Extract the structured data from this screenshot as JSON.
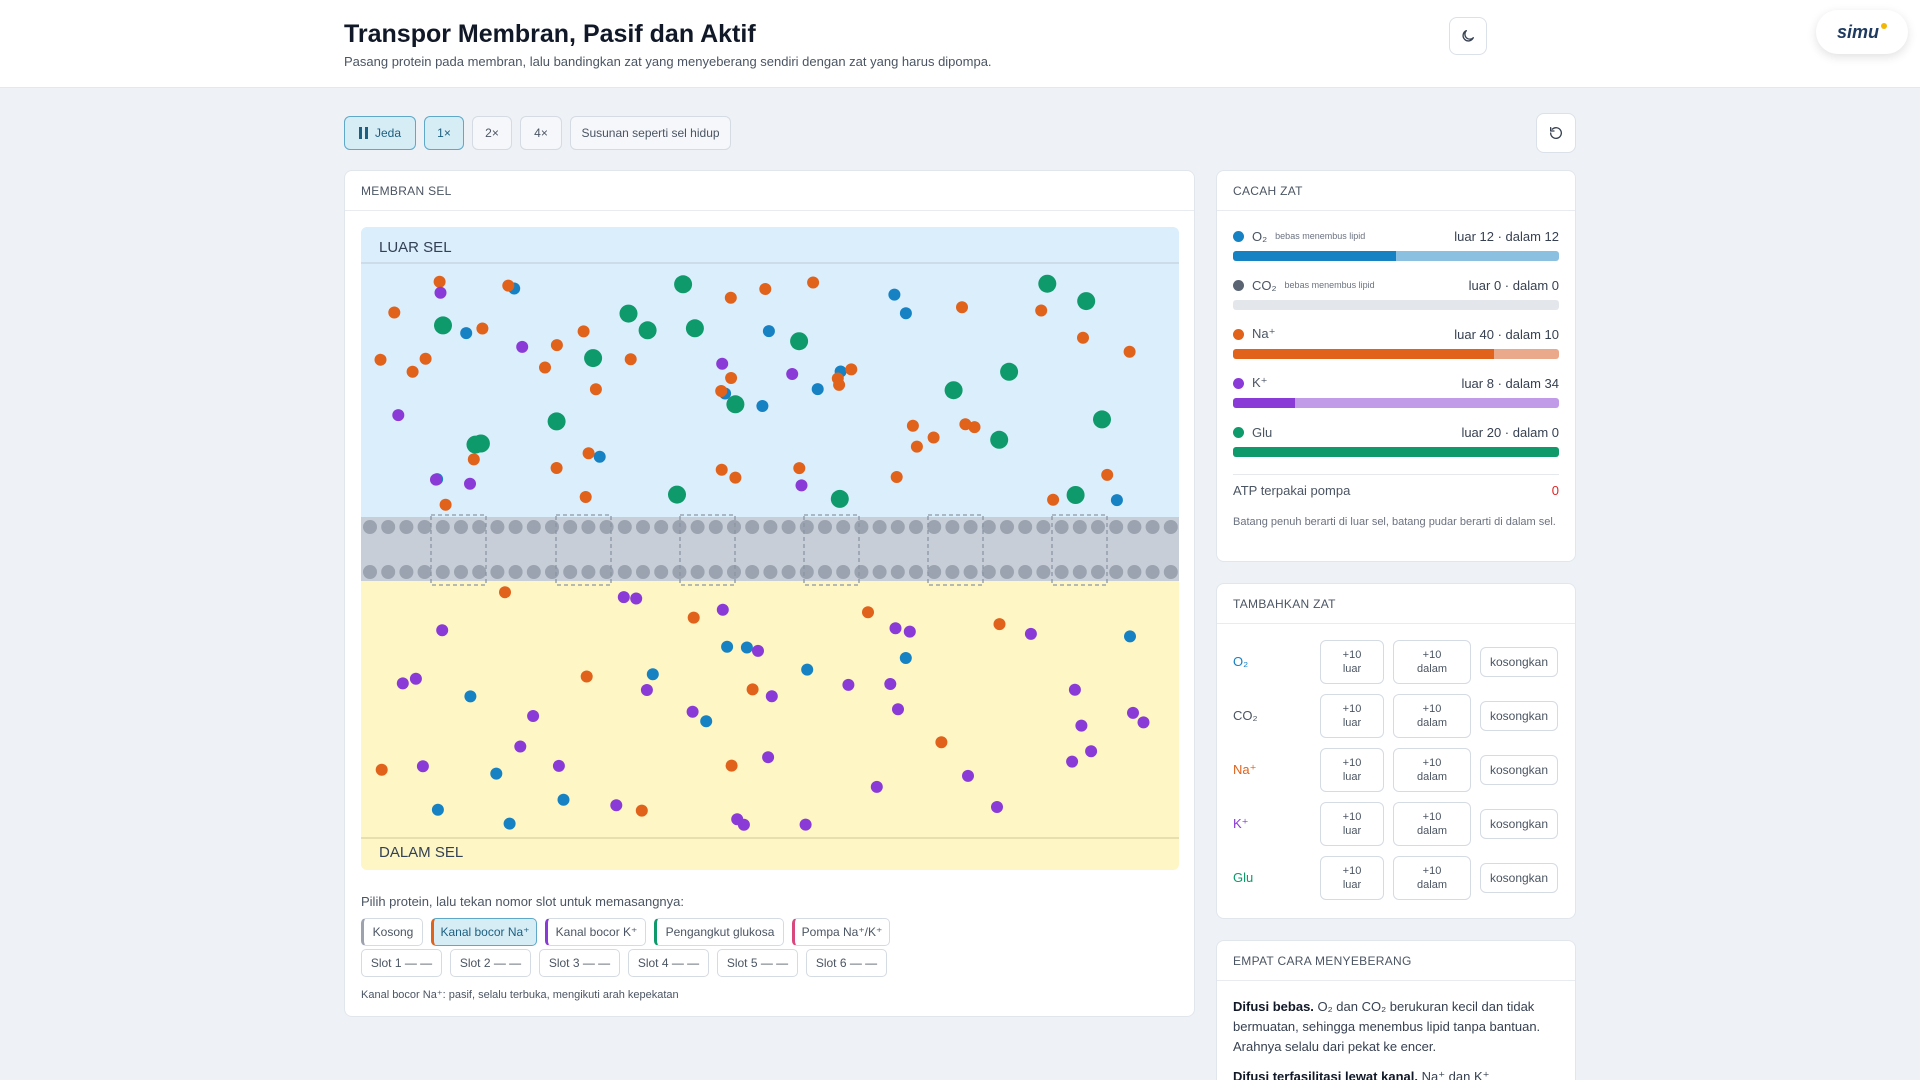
{
  "header": {
    "title": "Transpor Membran, Pasif dan Aktif",
    "subtitle": "Pasang protein pada membran, lalu bandingkan zat yang menyeberang sendiri dengan zat yang harus dipompa.",
    "brand": "simu"
  },
  "controls": {
    "pause_label": "Jeda",
    "speeds": [
      "1×",
      "2×",
      "4×"
    ],
    "active_speed": "1×",
    "preset_label": "Susunan seperti sel hidup"
  },
  "membrane": {
    "heading": "MEMBRAN SEL",
    "outside_label": "LUAR SEL",
    "inside_label": "DALAM SEL",
    "hint": "Pilih protein, lalu tekan nomor slot untuk memasangnya:",
    "proteins": [
      "Kosong",
      "Kanal bocor Na⁺",
      "Kanal bocor K⁺",
      "Pengangkut glukosa",
      "Pompa Na⁺/K⁺"
    ],
    "selected_protein": "Kanal bocor Na⁺",
    "slots": [
      "Slot 1 — —",
      "Slot 2 — —",
      "Slot 3 — —",
      "Slot 4 — —",
      "Slot 5 — —",
      "Slot 6 — —"
    ],
    "note": "Kanal bocor Na⁺: pasif, selalu terbuka, mengikuti arah kepekatan"
  },
  "counts": {
    "heading": "CACAH ZAT",
    "items": [
      {
        "name": "O₂",
        "tag": "bebas menembus lipid",
        "value": "luar 12 · dalam 12",
        "outside": 12,
        "inside": 12,
        "color": "#1682c4",
        "light": "#8cc0e0"
      },
      {
        "name": "CO₂",
        "tag": "bebas menembus lipid",
        "value": "luar 0 · dalam 0",
        "outside": 0,
        "inside": 0,
        "color": "#5b6472",
        "light": "#e3e7ec"
      },
      {
        "name": "Na⁺",
        "tag": "",
        "value": "luar 40 · dalam 10",
        "outside": 40,
        "inside": 10,
        "color": "#e0621b",
        "light": "#eaa98b"
      },
      {
        "name": "K⁺",
        "tag": "",
        "value": "luar 8 · dalam 34",
        "outside": 8,
        "inside": 34,
        "color": "#8a3ad6",
        "light": "#c29be8"
      },
      {
        "name": "Glu",
        "tag": "",
        "value": "luar 20 · dalam 0",
        "outside": 20,
        "inside": 0,
        "color": "#0e9a6b",
        "light": "#7fcfb1"
      }
    ],
    "atp_label": "ATP terpakai pompa",
    "atp_value": "0",
    "legend_note": "Batang penuh berarti di luar sel, batang pudar berarti di dalam sel."
  },
  "add": {
    "heading": "TAMBAHKAN ZAT",
    "rows": [
      {
        "name": "O₂",
        "color": "#1682c4"
      },
      {
        "name": "CO₂",
        "color": "#4b5563"
      },
      {
        "name": "Na⁺",
        "color": "#e0621b"
      },
      {
        "name": "K⁺",
        "color": "#8a3ad6"
      },
      {
        "name": "Glu",
        "color": "#0e9a6b"
      }
    ],
    "out_top": "+10",
    "out_bottom": "luar",
    "in_top": "+10",
    "in_bottom": "dalam",
    "empty_label": "kosongkan"
  },
  "ways": {
    "heading": "EMPAT CARA MENYEBERANG",
    "p1_title": "Difusi bebas.",
    "p1_text": " O₂ dan CO₂ berukuran kecil dan tidak bermuatan, sehingga menembus lipid tanpa bantuan. Arahnya selalu dari pekat ke encer.",
    "p2_title": "Difusi terfasilitasi lewat kanal.",
    "p2_text": " Na⁺ dan K⁺"
  },
  "icons": {
    "pause": "pause-icon",
    "theme": "moon-icon",
    "reset": "reset-icon"
  }
}
